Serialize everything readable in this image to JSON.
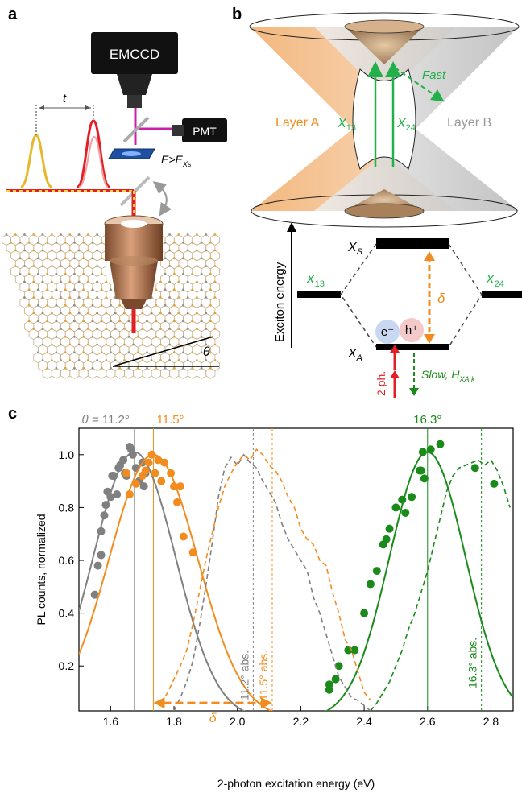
{
  "panels": {
    "a": {
      "label": "a",
      "camera": "EMCCD",
      "detector": "PMT",
      "delay_label": "t",
      "energy_cond_main": "E>E",
      "energy_cond_sub": "Xs",
      "twist_angle_label": "θ"
    },
    "b": {
      "label": "b",
      "layer_a": "Layer A",
      "layer_b": "Layer B",
      "fast_label": "Fast",
      "x13_main": "X",
      "x13_sub": "13",
      "x24_main": "X",
      "x24_sub": "24",
      "energy_axis_label": "Exciton energy",
      "xs_main": "X",
      "xs_sub": "S",
      "xa_main": "X",
      "xa_sub": "A",
      "delta": "δ",
      "electron": "e⁻",
      "hole": "h⁺",
      "two_photon": "2 ph.",
      "slow_label": "Slow, H",
      "slow_sub": "XA,k"
    },
    "c": {
      "label": "c",
      "angle_prefix": "θ = ",
      "angle_labels": [
        "11.2°",
        "11.5°",
        "16.3°"
      ],
      "abs_labels": [
        "11.2° abs.",
        "11.5° abs.",
        "16.3° abs."
      ],
      "delta": "δ"
    }
  },
  "colors": {
    "gray": "#808080",
    "orange": "#f28c1e",
    "green": "#1a8a1a",
    "light_green": "#22b04a",
    "red": "#e31e24",
    "layer_a_fill": "#f5c28f",
    "layer_b_fill": "#d0d0d0"
  },
  "chart_data": {
    "type": "scatter",
    "xlabel": "2-photon excitation energy (eV)",
    "ylabel": "PL counts, normalized",
    "xlim": [
      1.5,
      2.87
    ],
    "ylim": [
      0.03,
      1.1
    ],
    "xticks": [
      1.6,
      1.8,
      2.0,
      2.2,
      2.4,
      2.6,
      2.8
    ],
    "yticks": [
      0.2,
      0.4,
      0.6,
      0.8,
      1.0
    ],
    "grid": false,
    "series": [
      {
        "name": "11.2°",
        "kind": "points",
        "color": "#808080",
        "points": [
          [
            1.55,
            0.47
          ],
          [
            1.56,
            0.58
          ],
          [
            1.57,
            0.62
          ],
          [
            1.57,
            0.71
          ],
          [
            1.58,
            0.77
          ],
          [
            1.585,
            0.81
          ],
          [
            1.59,
            0.86
          ],
          [
            1.6,
            0.84
          ],
          [
            1.605,
            0.92
          ],
          [
            1.61,
            0.92
          ],
          [
            1.62,
            0.85
          ],
          [
            1.625,
            0.95
          ],
          [
            1.63,
            0.96
          ],
          [
            1.64,
            0.98
          ],
          [
            1.645,
            0.93
          ],
          [
            1.65,
            0.92
          ],
          [
            1.66,
            1.03
          ],
          [
            1.665,
            1.02
          ],
          [
            1.67,
            1.0
          ],
          [
            1.68,
            0.95
          ],
          [
            1.69,
            0.9
          ],
          [
            1.7,
            0.97
          ],
          [
            1.705,
            0.88
          ],
          [
            1.71,
            0.93
          ]
        ]
      },
      {
        "name": "11.2°",
        "kind": "fit",
        "color": "#808080",
        "center": 1.675,
        "sigma": 0.13,
        "amplitude": 1.01,
        "x_range": [
          1.5,
          2.09
        ]
      },
      {
        "name": "11.5°",
        "kind": "points",
        "color": "#f28c1e",
        "points": [
          [
            1.65,
            0.93
          ],
          [
            1.66,
            0.85
          ],
          [
            1.68,
            0.89
          ],
          [
            1.7,
            0.92
          ],
          [
            1.71,
            0.94
          ],
          [
            1.72,
            0.97
          ],
          [
            1.73,
            1.0
          ],
          [
            1.74,
            0.93
          ],
          [
            1.75,
            0.98
          ],
          [
            1.76,
            0.9
          ],
          [
            1.77,
            0.97
          ],
          [
            1.79,
            0.93
          ],
          [
            1.8,
            0.88
          ],
          [
            1.81,
            0.82
          ],
          [
            1.82,
            0.88
          ],
          [
            1.83,
            0.69
          ],
          [
            1.86,
            0.63
          ]
        ]
      },
      {
        "name": "11.5°",
        "kind": "fit",
        "color": "#f28c1e",
        "center": 1.735,
        "sigma": 0.14,
        "amplitude": 1.0,
        "x_range": [
          1.5,
          2.15
        ]
      },
      {
        "name": "16.3°",
        "kind": "points",
        "color": "#1a8a1a",
        "points": [
          [
            2.29,
            0.13
          ],
          [
            2.29,
            0.11
          ],
          [
            2.31,
            0.15
          ],
          [
            2.32,
            0.2
          ],
          [
            2.35,
            0.26
          ],
          [
            2.37,
            0.26
          ],
          [
            2.4,
            0.4
          ],
          [
            2.42,
            0.51
          ],
          [
            2.44,
            0.56
          ],
          [
            2.46,
            0.66
          ],
          [
            2.47,
            0.68
          ],
          [
            2.48,
            0.72
          ],
          [
            2.5,
            0.8
          ],
          [
            2.52,
            0.83
          ],
          [
            2.53,
            0.78
          ],
          [
            2.55,
            0.84
          ],
          [
            2.575,
            0.94
          ],
          [
            2.58,
            0.94
          ],
          [
            2.59,
            0.91
          ],
          [
            2.585,
            1.01
          ],
          [
            2.61,
            1.02
          ],
          [
            2.64,
            1.04
          ],
          [
            2.75,
            0.95
          ],
          [
            2.81,
            0.89
          ]
        ]
      },
      {
        "name": "16.3°",
        "kind": "fit",
        "color": "#1a8a1a",
        "center": 2.6,
        "sigma": 0.12,
        "amplitude": 1.01,
        "x_range": [
          2.23,
          2.87
        ]
      },
      {
        "name": "11.2° abs.",
        "kind": "dashed",
        "color": "#808080",
        "points": [
          [
            1.8,
            0.03
          ],
          [
            1.82,
            0.08
          ],
          [
            1.84,
            0.14
          ],
          [
            1.86,
            0.22
          ],
          [
            1.88,
            0.35
          ],
          [
            1.9,
            0.5
          ],
          [
            1.92,
            0.66
          ],
          [
            1.94,
            0.84
          ],
          [
            1.96,
            0.95
          ],
          [
            1.98,
            0.99
          ],
          [
            2.0,
            0.96
          ],
          [
            2.02,
            1.0
          ],
          [
            2.04,
            0.97
          ],
          [
            2.06,
            0.95
          ],
          [
            2.08,
            0.9
          ],
          [
            2.1,
            0.86
          ],
          [
            2.12,
            0.82
          ],
          [
            2.14,
            0.74
          ],
          [
            2.16,
            0.68
          ],
          [
            2.18,
            0.64
          ],
          [
            2.2,
            0.6
          ],
          [
            2.22,
            0.56
          ],
          [
            2.24,
            0.46
          ],
          [
            2.26,
            0.4
          ],
          [
            2.28,
            0.32
          ],
          [
            2.3,
            0.24
          ],
          [
            2.32,
            0.16
          ],
          [
            2.34,
            0.12
          ],
          [
            2.36,
            0.08
          ],
          [
            2.38,
            0.07
          ],
          [
            2.4,
            0.05
          ],
          [
            2.42,
            0.03
          ]
        ]
      },
      {
        "name": "11.5° abs.",
        "kind": "dashed",
        "color": "#f28c1e",
        "points": [
          [
            1.76,
            0.06
          ],
          [
            1.78,
            0.1
          ],
          [
            1.8,
            0.15
          ],
          [
            1.82,
            0.2
          ],
          [
            1.84,
            0.26
          ],
          [
            1.86,
            0.36
          ],
          [
            1.88,
            0.48
          ],
          [
            1.9,
            0.6
          ],
          [
            1.92,
            0.7
          ],
          [
            1.94,
            0.8
          ],
          [
            1.96,
            0.88
          ],
          [
            1.98,
            0.93
          ],
          [
            2.0,
            0.97
          ],
          [
            2.02,
            1.0
          ],
          [
            2.04,
            0.98
          ],
          [
            2.06,
            1.02
          ],
          [
            2.08,
            1.0
          ],
          [
            2.1,
            0.96
          ],
          [
            2.12,
            0.94
          ],
          [
            2.14,
            0.9
          ],
          [
            2.16,
            0.84
          ],
          [
            2.18,
            0.8
          ],
          [
            2.2,
            0.72
          ],
          [
            2.22,
            0.68
          ],
          [
            2.24,
            0.66
          ],
          [
            2.26,
            0.6
          ],
          [
            2.28,
            0.58
          ],
          [
            2.3,
            0.48
          ],
          [
            2.32,
            0.4
          ],
          [
            2.34,
            0.3
          ],
          [
            2.36,
            0.26
          ],
          [
            2.38,
            0.18
          ],
          [
            2.4,
            0.1
          ],
          [
            2.42,
            0.07
          ]
        ]
      },
      {
        "name": "16.3° abs.",
        "kind": "dashed",
        "color": "#1a8a1a",
        "points": [
          [
            2.42,
            0.03
          ],
          [
            2.44,
            0.06
          ],
          [
            2.46,
            0.1
          ],
          [
            2.48,
            0.14
          ],
          [
            2.5,
            0.2
          ],
          [
            2.52,
            0.26
          ],
          [
            2.54,
            0.34
          ],
          [
            2.56,
            0.4
          ],
          [
            2.58,
            0.48
          ],
          [
            2.6,
            0.56
          ],
          [
            2.62,
            0.66
          ],
          [
            2.64,
            0.76
          ],
          [
            2.66,
            0.86
          ],
          [
            2.68,
            0.92
          ],
          [
            2.7,
            0.95
          ],
          [
            2.72,
            0.96
          ],
          [
            2.74,
            0.97
          ],
          [
            2.76,
            0.98
          ],
          [
            2.78,
            0.96
          ],
          [
            2.8,
            0.98
          ],
          [
            2.82,
            0.94
          ],
          [
            2.84,
            0.88
          ],
          [
            2.86,
            0.8
          ]
        ]
      }
    ],
    "vertical_markers": [
      {
        "x": 1.675,
        "color": "#808080",
        "style": "solid"
      },
      {
        "x": 1.735,
        "color": "#f28c1e",
        "style": "solid"
      },
      {
        "x": 2.6,
        "color": "#1a8a1a",
        "style": "solid"
      },
      {
        "x": 2.05,
        "color": "#808080",
        "style": "dotted"
      },
      {
        "x": 2.11,
        "color": "#f28c1e",
        "style": "dotted"
      },
      {
        "x": 2.77,
        "color": "#1a8a1a",
        "style": "dotted"
      }
    ],
    "delta_arrow": {
      "x_from": 1.735,
      "x_to": 2.11,
      "y": 0.06
    }
  }
}
